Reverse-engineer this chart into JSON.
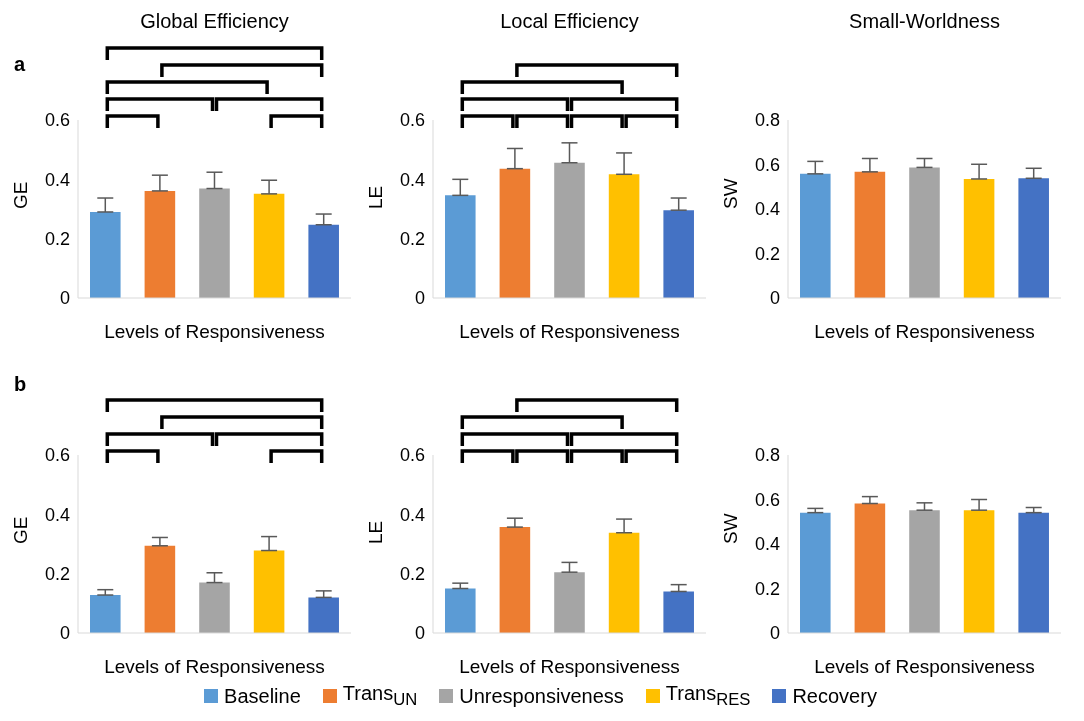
{
  "chart_data": [
    {
      "type": "bar",
      "title": "Global Efficiency",
      "xlabel": "Levels of Responsiveness",
      "ylabel": "GE",
      "annotations": [
        "a"
      ],
      "legend": "bottom",
      "categories": [
        null
      ],
      "ylim": [
        0,
        0.6
      ],
      "yticks": [
        0,
        0.2,
        0.4,
        0.6
      ],
      "series": [
        {
          "name": "Baseline",
          "color": "#5b9bd5",
          "values": [
            0.29
          ],
          "errors": [
            [
              0.29,
              0.337
            ]
          ]
        },
        {
          "name": "Trans$_{UN}$",
          "color": "#ed7d31",
          "values": [
            0.361
          ],
          "errors": [
            [
              0.361,
              0.414
            ]
          ]
        },
        {
          "name": "Unresponsiveness",
          "color": "#a5a5a5",
          "values": [
            0.369
          ],
          "errors": [
            [
              0.369,
              0.424
            ]
          ]
        },
        {
          "name": "Trans$_{RES}$",
          "color": "#ffc000",
          "values": [
            0.351
          ],
          "errors": [
            [
              0.351,
              0.397
            ]
          ]
        },
        {
          "name": "Recovery",
          "color": "#4472c4",
          "values": [
            0.247
          ],
          "errors": [
            [
              0.247,
              0.283
            ]
          ]
        }
      ]
    },
    {
      "type": "bar",
      "title": "Local Efficiency",
      "xlabel": "Levels of Responsiveness",
      "ylabel": "LE",
      "categories": [
        null
      ],
      "ylim": [
        0,
        0.6
      ],
      "yticks": [
        0,
        0.2,
        0.4,
        0.6
      ],
      "series": [
        {
          "color": "#5b9bd5",
          "values": [
            0.346
          ],
          "errors": [
            [
              0.346,
              0.4
            ]
          ]
        },
        {
          "color": "#ed7d31",
          "values": [
            0.436
          ],
          "errors": [
            [
              0.436,
              0.504
            ]
          ]
        },
        {
          "color": "#a5a5a5",
          "values": [
            0.456
          ],
          "errors": [
            [
              0.456,
              0.523
            ]
          ]
        },
        {
          "color": "#ffc000",
          "values": [
            0.417
          ],
          "errors": [
            [
              0.417,
              0.489
            ]
          ]
        },
        {
          "color": "#4472c4",
          "values": [
            0.296
          ],
          "errors": [
            [
              0.296,
              0.337
            ]
          ]
        }
      ]
    },
    {
      "type": "bar",
      "title": "Small-Worldness",
      "xlabel": "Levels of Responsiveness",
      "ylabel": "SW",
      "categories": [
        null
      ],
      "ylim": [
        0,
        0.8
      ],
      "yticks": [
        0,
        0.2,
        0.4,
        0.6,
        0.8
      ],
      "series": [
        {
          "color": "#5b9bd5",
          "values": [
            0.558
          ],
          "errors": [
            [
              0.558,
              0.614
            ]
          ]
        },
        {
          "color": "#ed7d31",
          "values": [
            0.567
          ],
          "errors": [
            [
              0.567,
              0.627
            ]
          ]
        },
        {
          "color": "#a5a5a5",
          "values": [
            0.587
          ],
          "errors": [
            [
              0.587,
              0.627
            ]
          ]
        },
        {
          "color": "#ffc000",
          "values": [
            0.535
          ],
          "errors": [
            [
              0.535,
              0.601
            ]
          ]
        },
        {
          "color": "#4472c4",
          "values": [
            0.538
          ],
          "errors": [
            [
              0.538,
              0.583
            ]
          ]
        }
      ]
    },
    {
      "type": "bar",
      "xlabel": "Levels of Responsiveness",
      "ylabel": "GE",
      "annotations": [
        "b"
      ],
      "categories": [
        null
      ],
      "ylim": [
        0,
        0.6
      ],
      "yticks": [
        0,
        0.2,
        0.4,
        0.6
      ],
      "series": [
        {
          "color": "#5b9bd5",
          "values": [
            0.128
          ],
          "errors": [
            [
              0.128,
              0.146
            ]
          ]
        },
        {
          "color": "#ed7d31",
          "values": [
            0.294
          ],
          "errors": [
            [
              0.294,
              0.322
            ]
          ]
        },
        {
          "color": "#a5a5a5",
          "values": [
            0.17
          ],
          "errors": [
            [
              0.17,
              0.203
            ]
          ]
        },
        {
          "color": "#ffc000",
          "values": [
            0.278
          ],
          "errors": [
            [
              0.278,
              0.325
            ]
          ]
        },
        {
          "color": "#4472c4",
          "values": [
            0.12
          ],
          "errors": [
            [
              0.12,
              0.142
            ]
          ]
        }
      ]
    },
    {
      "type": "bar",
      "xlabel": "Levels of Responsiveness",
      "ylabel": "LE",
      "categories": [
        null
      ],
      "ylim": [
        0,
        0.6
      ],
      "yticks": [
        0,
        0.2,
        0.4,
        0.6
      ],
      "series": [
        {
          "color": "#5b9bd5",
          "values": [
            0.15
          ],
          "errors": [
            [
              0.15,
              0.168
            ]
          ]
        },
        {
          "color": "#ed7d31",
          "values": [
            0.357
          ],
          "errors": [
            [
              0.357,
              0.387
            ]
          ]
        },
        {
          "color": "#a5a5a5",
          "values": [
            0.205
          ],
          "errors": [
            [
              0.205,
              0.238
            ]
          ]
        },
        {
          "color": "#ffc000",
          "values": [
            0.338
          ],
          "errors": [
            [
              0.338,
              0.384
            ]
          ]
        },
        {
          "color": "#4472c4",
          "values": [
            0.14
          ],
          "errors": [
            [
              0.14,
              0.163
            ]
          ]
        }
      ]
    },
    {
      "type": "bar",
      "xlabel": "Levels of Responsiveness",
      "ylabel": "SW",
      "categories": [
        null
      ],
      "ylim": [
        0,
        0.8
      ],
      "yticks": [
        0,
        0.2,
        0.4,
        0.6,
        0.8
      ],
      "series": [
        {
          "color": "#5b9bd5",
          "values": [
            0.541
          ],
          "errors": [
            [
              0.541,
              0.56
            ]
          ]
        },
        {
          "color": "#ed7d31",
          "values": [
            0.582
          ],
          "errors": [
            [
              0.582,
              0.613
            ]
          ]
        },
        {
          "color": "#a5a5a5",
          "values": [
            0.552
          ],
          "errors": [
            [
              0.552,
              0.585
            ]
          ]
        },
        {
          "color": "#ffc000",
          "values": [
            0.552
          ],
          "errors": [
            [
              0.552,
              0.6
            ]
          ]
        },
        {
          "color": "#4472c4",
          "values": [
            0.541
          ],
          "errors": [
            [
              0.541,
              0.564
            ]
          ]
        }
      ]
    }
  ]
}
